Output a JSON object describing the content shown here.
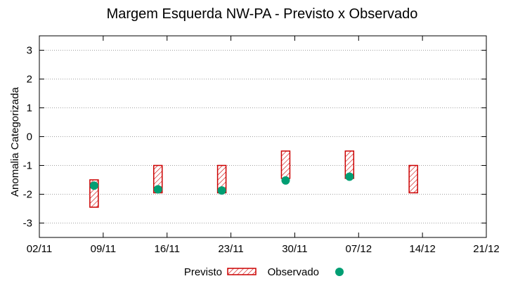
{
  "chart_data": {
    "type": "range-bar-scatter",
    "title": "Margem Esquerda NW-PA - Previsto x Observado",
    "xlabel": "",
    "ylabel": "Anomalia Categorizada",
    "x_ticks": [
      "02/11",
      "09/11",
      "16/11",
      "23/11",
      "30/11",
      "07/12",
      "14/12",
      "21/12"
    ],
    "x_tick_dates": [
      "2020-11-02",
      "2020-11-09",
      "2020-11-16",
      "2020-11-23",
      "2020-11-30",
      "2020-12-07",
      "2020-12-14",
      "2020-12-21"
    ],
    "xlim": [
      "2020-11-02",
      "2020-12-21"
    ],
    "ylim": [
      -3.5,
      3.5
    ],
    "y_ticks": [
      3,
      2,
      1,
      0,
      -1,
      -2,
      -3
    ],
    "grid": true,
    "legend_position": "bottom",
    "series": [
      {
        "name": "Previsto",
        "style": "hatched-box",
        "color": "#cc0000",
        "points": [
          {
            "date": "2020-11-08",
            "low": -2.45,
            "high": -1.5
          },
          {
            "date": "2020-11-15",
            "low": -1.95,
            "high": -1.0
          },
          {
            "date": "2020-11-22",
            "low": -1.95,
            "high": -1.0
          },
          {
            "date": "2020-11-29",
            "low": -1.45,
            "high": -0.5
          },
          {
            "date": "2020-12-06",
            "low": -1.45,
            "high": -0.5
          },
          {
            "date": "2020-12-13",
            "low": -1.95,
            "high": -1.0
          }
        ]
      },
      {
        "name": "Observado",
        "style": "dot",
        "color": "#009e73",
        "points": [
          {
            "date": "2020-11-08",
            "value": -1.7
          },
          {
            "date": "2020-11-15",
            "value": -1.83
          },
          {
            "date": "2020-11-22",
            "value": -1.87
          },
          {
            "date": "2020-11-29",
            "value": -1.52
          },
          {
            "date": "2020-12-06",
            "value": -1.39
          }
        ]
      }
    ]
  }
}
